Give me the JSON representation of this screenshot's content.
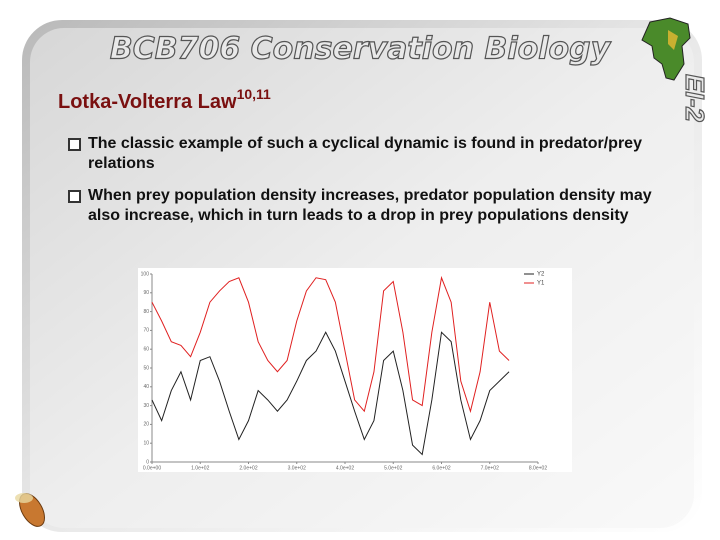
{
  "header": {
    "title": "BCB706 Conservation Biology",
    "badge": "EI-2"
  },
  "heading": {
    "text": "Lotka-Volterra Law",
    "superscript": "10,11"
  },
  "bullets": [
    "The classic example of such a cyclical dynamic is found in predator/prey relations",
    "When prey population density increases, predator population density may also increase, which in turn leads to a drop in prey populations density"
  ],
  "chart_data": {
    "type": "line",
    "x": [
      0,
      20,
      40,
      60,
      80,
      100,
      120,
      140,
      160,
      180,
      200,
      220,
      240,
      260,
      280,
      300,
      320,
      340,
      360,
      380,
      400,
      420,
      440,
      460,
      480,
      500,
      520,
      540,
      560,
      580,
      600,
      620,
      640,
      660,
      680,
      700,
      720,
      740
    ],
    "series": [
      {
        "name": "Y2",
        "color": "#222222",
        "values": [
          33,
          22,
          38,
          48,
          33,
          54,
          56,
          43,
          27,
          12,
          22,
          38,
          33,
          27,
          33,
          43,
          54,
          59,
          69,
          59,
          43,
          27,
          12,
          22,
          54,
          59,
          38,
          9,
          4,
          33,
          69,
          64,
          33,
          12,
          22,
          38,
          43,
          48
        ]
      },
      {
        "name": "Y1",
        "color": "#e02020",
        "values": [
          85,
          75,
          64,
          62,
          56,
          69,
          85,
          91,
          96,
          98,
          85,
          64,
          54,
          48,
          54,
          75,
          91,
          98,
          97,
          85,
          59,
          33,
          27,
          48,
          91,
          96,
          69,
          33,
          30,
          69,
          98,
          85,
          43,
          27,
          48,
          85,
          59,
          54
        ]
      }
    ],
    "xlim": [
      0,
      800
    ],
    "ylim": [
      0,
      100
    ],
    "xticks": [
      {
        "value": 0,
        "label": "0.0e+00"
      },
      {
        "value": 100,
        "label": "1.0e+02"
      },
      {
        "value": 200,
        "label": "2.0e+02"
      },
      {
        "value": 300,
        "label": "3.0e+02"
      },
      {
        "value": 400,
        "label": "4.0e+02"
      },
      {
        "value": 500,
        "label": "5.0e+02"
      },
      {
        "value": 600,
        "label": "6.0e+02"
      },
      {
        "value": 700,
        "label": "7.0e+02"
      },
      {
        "value": 800,
        "label": "8.0e+02"
      }
    ],
    "yticks": [
      0,
      10,
      20,
      30,
      40,
      50,
      60,
      70,
      80,
      90,
      100
    ],
    "legend": "upper right"
  }
}
